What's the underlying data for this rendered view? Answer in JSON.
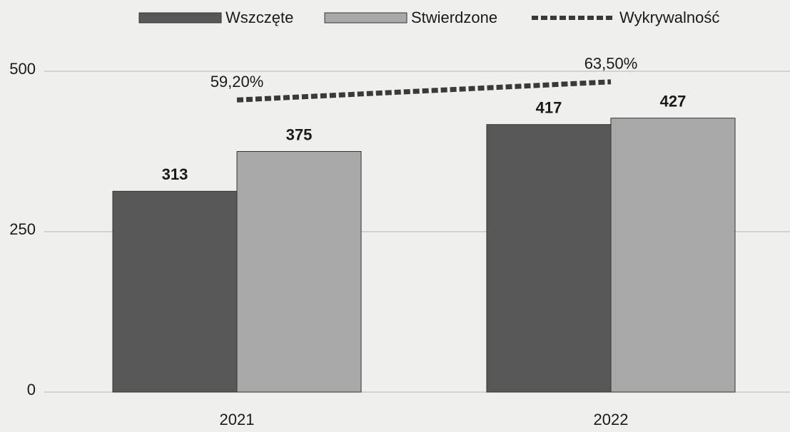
{
  "chart_data": {
    "type": "bar",
    "categories": [
      "2021",
      "2022"
    ],
    "series": [
      {
        "name": "Wszczęte",
        "color": "#585858",
        "values": [
          313,
          417
        ]
      },
      {
        "name": "Stwierdzone",
        "color": "#a9a9a9",
        "values": [
          375,
          427
        ]
      },
      {
        "name": "Wykrywalność",
        "type": "line",
        "axis": "y2",
        "color": "#3a3a3a",
        "values": [
          59.2,
          63.5
        ],
        "value_labels": [
          "59,20%",
          "63,50%"
        ]
      }
    ],
    "ylim": [
      0,
      500
    ],
    "yticks": [
      0,
      250,
      500
    ],
    "y2lim": [
      -10,
      66
    ],
    "grid": true,
    "legend": "top"
  }
}
